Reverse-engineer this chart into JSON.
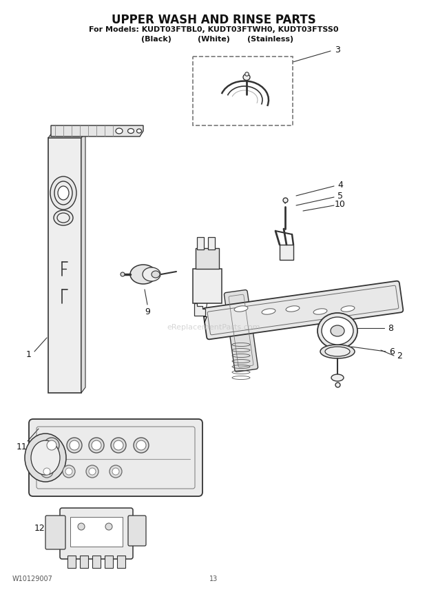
{
  "title": "UPPER WASH AND RINSE PARTS",
  "subtitle1": "For Models: KUDT03FTBL0, KUDT03FTWH0, KUDT03FTSS0",
  "subtitle2_black": "(Black)",
  "subtitle2_white": "(White)",
  "subtitle2_stainless": "(Stainless)",
  "footer_left": "W10129007",
  "footer_center": "13",
  "bg_color": "#ffffff",
  "title_fontsize": 12,
  "subtitle_fontsize": 8,
  "label_fontsize": 9,
  "watermark": "eReplacementParts.com",
  "ec": "#333333",
  "fc_light": "#eeeeee",
  "fc_mid": "#dddddd",
  "fc_dark": "#bbbbbb"
}
